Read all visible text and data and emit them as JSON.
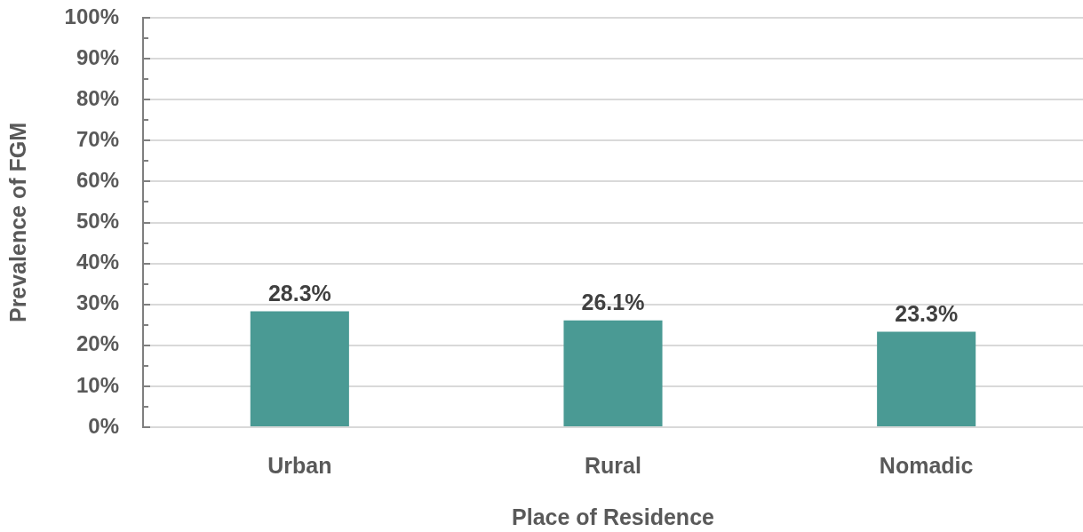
{
  "chart_data": {
    "type": "bar",
    "categories": [
      "Urban",
      "Rural",
      "Nomadic"
    ],
    "values": [
      28.3,
      26.1,
      23.3
    ],
    "color": "#4a9a94",
    "value_labels": [
      "28.3%",
      "26.1%",
      "23.3%"
    ],
    "xlabel": "Place of Residence",
    "ylabel": "Prevalence of FGM",
    "ylim": [
      0,
      100
    ],
    "yticks": [
      {
        "value": 0,
        "label": "0%"
      },
      {
        "value": 5,
        "label": null
      },
      {
        "value": 10,
        "label": "10%"
      },
      {
        "value": 15,
        "label": null
      },
      {
        "value": 20,
        "label": "20%"
      },
      {
        "value": 25,
        "label": null
      },
      {
        "value": 30,
        "label": "30%"
      },
      {
        "value": 35,
        "label": null
      },
      {
        "value": 40,
        "label": "40%"
      },
      {
        "value": 45,
        "label": null
      },
      {
        "value": 50,
        "label": "50%"
      },
      {
        "value": 55,
        "label": null
      },
      {
        "value": 60,
        "label": "60%"
      },
      {
        "value": 65,
        "label": null
      },
      {
        "value": 70,
        "label": "70%"
      },
      {
        "value": 75,
        "label": null
      },
      {
        "value": 80,
        "label": "80%"
      },
      {
        "value": 85,
        "label": null
      },
      {
        "value": 90,
        "label": "90%"
      },
      {
        "value": 95,
        "label": null
      },
      {
        "value": 100,
        "label": "100%"
      }
    ],
    "grid": "y"
  }
}
